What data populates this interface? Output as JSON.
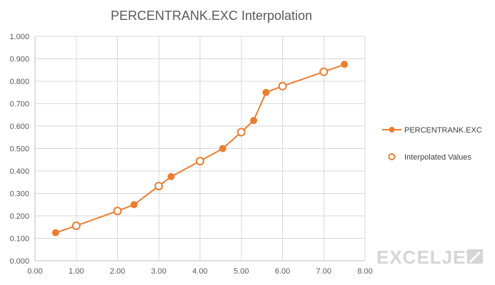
{
  "colors": {
    "series": "#ed7d31",
    "background": "#ffffff",
    "grid": "#d9d9d9",
    "text": "#595959"
  },
  "watermark": {
    "text": "EXCELJET",
    "icon": "exceljet-flag-icon"
  },
  "chart_data": {
    "type": "scatter",
    "title": "PERCENTRANK.EXC Interpolation",
    "xlabel": "",
    "ylabel": "",
    "xlim": [
      0,
      8
    ],
    "ylim": [
      0,
      1
    ],
    "grid": true,
    "legend_position": "right",
    "x_ticks": [
      "0.00",
      "1.00",
      "2.00",
      "3.00",
      "4.00",
      "5.00",
      "6.00",
      "7.00",
      "8.00"
    ],
    "y_ticks": [
      "0.000",
      "0.100",
      "0.200",
      "0.300",
      "0.400",
      "0.500",
      "0.600",
      "0.700",
      "0.800",
      "0.900",
      "1.000"
    ],
    "series": [
      {
        "name": "PERCENTRANK.EXC",
        "style": "line-with-filled-markers",
        "color": "#ed7d31",
        "x": [
          0.5,
          2.4,
          3.3,
          4.55,
          5.3,
          5.6,
          7.5
        ],
        "y": [
          0.125,
          0.25,
          0.375,
          0.5,
          0.625,
          0.75,
          0.875
        ]
      },
      {
        "name": "Interpolated Values",
        "style": "open-markers",
        "color": "#ed7d31",
        "x": [
          1.0,
          2.0,
          3.0,
          4.0,
          5.0,
          6.0,
          7.0
        ],
        "y": [
          0.156,
          0.222,
          0.333,
          0.444,
          0.573,
          0.778,
          0.842
        ]
      }
    ]
  }
}
